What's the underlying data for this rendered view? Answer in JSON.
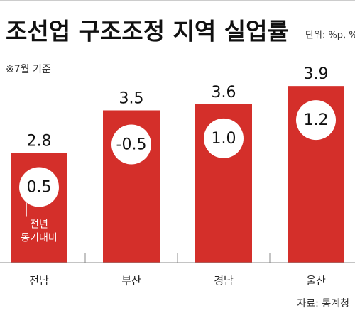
{
  "chart_data": {
    "type": "bar",
    "title": "조선업 구조조정 지역 실업률",
    "unit": "단위: %p, %",
    "note": "※7월 기준",
    "source": "자료: 통계청",
    "categories": [
      "전남",
      "부산",
      "경남",
      "울산"
    ],
    "values": [
      2.8,
      3.5,
      3.6,
      3.9
    ],
    "color": "#d42f2a",
    "ylim": [
      1,
      4.1
    ],
    "change": {
      "label_lines": [
        "전년",
        "동기대비"
      ],
      "values": [
        0.5,
        -0.5,
        1,
        1.2
      ],
      "value_labels": [
        "0.5",
        "-0.5",
        "1.0",
        "1.2"
      ]
    }
  }
}
